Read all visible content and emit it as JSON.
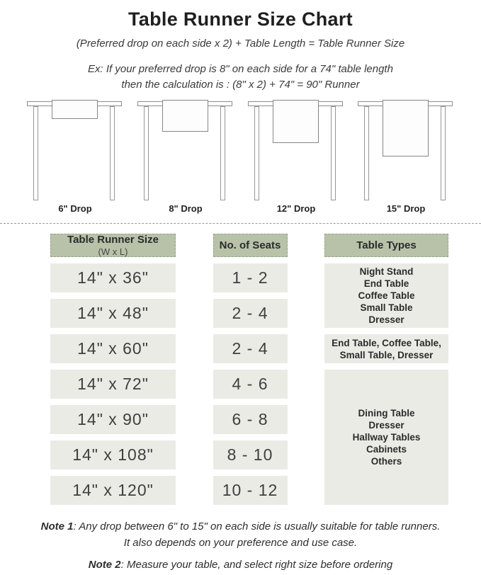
{
  "header": {
    "title": "Table Runner Size Chart",
    "formula": "(Preferred drop on each side x 2) + Table Length = Table Runner Size",
    "example_line1": "Ex: If your preferred drop is 8\" on each side for a 74\" table length",
    "example_line2": "then the calculation is : (8\" x 2) + 74\" = 90\" Runner"
  },
  "illustrations": [
    {
      "label": "6\" Drop"
    },
    {
      "label": "8\" Drop"
    },
    {
      "label": "12\" Drop"
    },
    {
      "label": "15\" Drop"
    }
  ],
  "table": {
    "headers": {
      "size_title": "Table Runner Size",
      "size_sub": "(W x L)",
      "seats": "No. of Seats",
      "types": "Table Types"
    },
    "rows": [
      {
        "size": "14\" x 36\"",
        "seats": "1 - 2"
      },
      {
        "size": "14\" x 48\"",
        "seats": "2 - 4"
      },
      {
        "size": "14\" x 60\"",
        "seats": "2 - 4"
      },
      {
        "size": "14\" x 72\"",
        "seats": "4 - 6"
      },
      {
        "size": "14\" x 90\"",
        "seats": "6 - 8"
      },
      {
        "size": "14\" x 108\"",
        "seats": "8 - 10"
      },
      {
        "size": "14\" x 120\"",
        "seats": "10 - 12"
      }
    ],
    "type_groups": {
      "group_a": "Night Stand\nEnd Table\nCoffee Table\nSmall Table\nDresser",
      "group_b": "End Table, Coffee Table,\nSmall Table, Dresser",
      "group_c": "Dining Table\nDresser\nHallway Tables\nCabinets\nOthers"
    }
  },
  "notes": {
    "note1_label": "Note 1",
    "note1_text": ": Any drop between 6\" to 15\" on each side is usually suitable for table runners.",
    "note1_line2": "It also depends on your preference and use case.",
    "note2_label": "Note 2",
    "note2_text": ": Measure your table, and select right size before ordering"
  },
  "colors": {
    "header_bg": "#b8c2a9",
    "cell_bg": "#ebebe6",
    "text": "#2b2b2b",
    "stroke": "#8d8d8d"
  }
}
